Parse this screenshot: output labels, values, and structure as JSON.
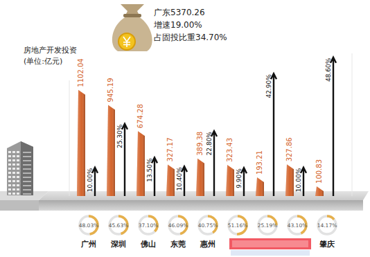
{
  "chart_data": {
    "type": "bar",
    "title": "房地产开发投资",
    "subtitle": "(单位:亿元)",
    "annotations": [
      "广东5370.26",
      "增速19.00%",
      "占固投比重34.70%"
    ],
    "categories": [
      "广州",
      "深圳",
      "佛山",
      "东莞",
      "惠州",
      null,
      null,
      null,
      "肇庆"
    ],
    "series": [
      {
        "type": "bar",
        "color": "#d4642c",
        "values": [
          1102.04,
          945.19,
          674.28,
          327.17,
          389.38,
          323.43,
          193.21,
          327.86,
          100.83
        ]
      },
      {
        "type": "arrow",
        "axis": "y2",
        "color": "#111111",
        "values": [
          10.0,
          25.3,
          13.5,
          10.4,
          22.8,
          9.9,
          42.9,
          10.0,
          48.6
        ],
        "value_labels": [
          "10.00%",
          "25.30%",
          "13.50%",
          "10.40%",
          "22.80%",
          "9.90%",
          "42.90%",
          "10.00%",
          "48.60%"
        ]
      },
      {
        "type": "donut",
        "color": "#e6b04c",
        "values": [
          48.03,
          45.63,
          37.1,
          46.09,
          40.75,
          51.16,
          25.19,
          43.1,
          14.17
        ],
        "value_labels": [
          "48.03%",
          "45.63%",
          "37.10%",
          "46.09%",
          "40.75%",
          "51.16%",
          "25.19%",
          "43.10%",
          "14.17%"
        ]
      }
    ],
    "ylim": [
      0,
      1200
    ],
    "y2lim": [
      0,
      50
    ],
    "data_labels": true,
    "tick_labels": false,
    "grid": false
  }
}
